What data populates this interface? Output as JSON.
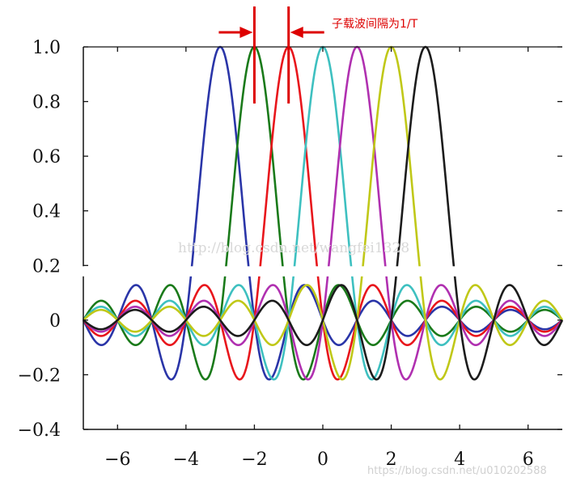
{
  "chart_data": {
    "type": "line",
    "title": "",
    "xlabel": "",
    "ylabel": "",
    "xlim": [
      -7,
      7
    ],
    "ylim": [
      -0.4,
      1.0
    ],
    "x_ticks": [
      -6,
      -4,
      -2,
      0,
      2,
      4,
      6
    ],
    "x_tick_labels": [
      "−6",
      "−4",
      "−2",
      "0",
      "2",
      "4",
      "6"
    ],
    "y_ticks": [
      -0.4,
      -0.2,
      0,
      0.2,
      0.4,
      0.6,
      0.8,
      1.0
    ],
    "y_tick_labels": [
      "−0.4",
      "−0.2",
      "0",
      "0.2",
      "0.4",
      "0.6",
      "0.8",
      "1.0"
    ],
    "y_axis_break": [
      0.16,
      0.2
    ],
    "function": "sinc",
    "series": [
      {
        "peak_x": -3,
        "color": "#2a35a8"
      },
      {
        "peak_x": -2,
        "color": "#1a7a1a"
      },
      {
        "peak_x": -1,
        "color": "#e8161c"
      },
      {
        "peak_x": 0,
        "color": "#3ec0c0"
      },
      {
        "peak_x": 1,
        "color": "#b030b0"
      },
      {
        "peak_x": 2,
        "color": "#c0c818"
      },
      {
        "peak_x": 3,
        "color": "#1c1c1c"
      }
    ],
    "annotation": {
      "text": "子载波间隔为1/T",
      "marker_x": [
        -2,
        -1
      ],
      "color": "#dd0000"
    }
  },
  "watermarks": {
    "center": "http://blog.csdn.net/wangfei1328",
    "bottom_right": "https://blog.csdn.net/u010202588"
  }
}
